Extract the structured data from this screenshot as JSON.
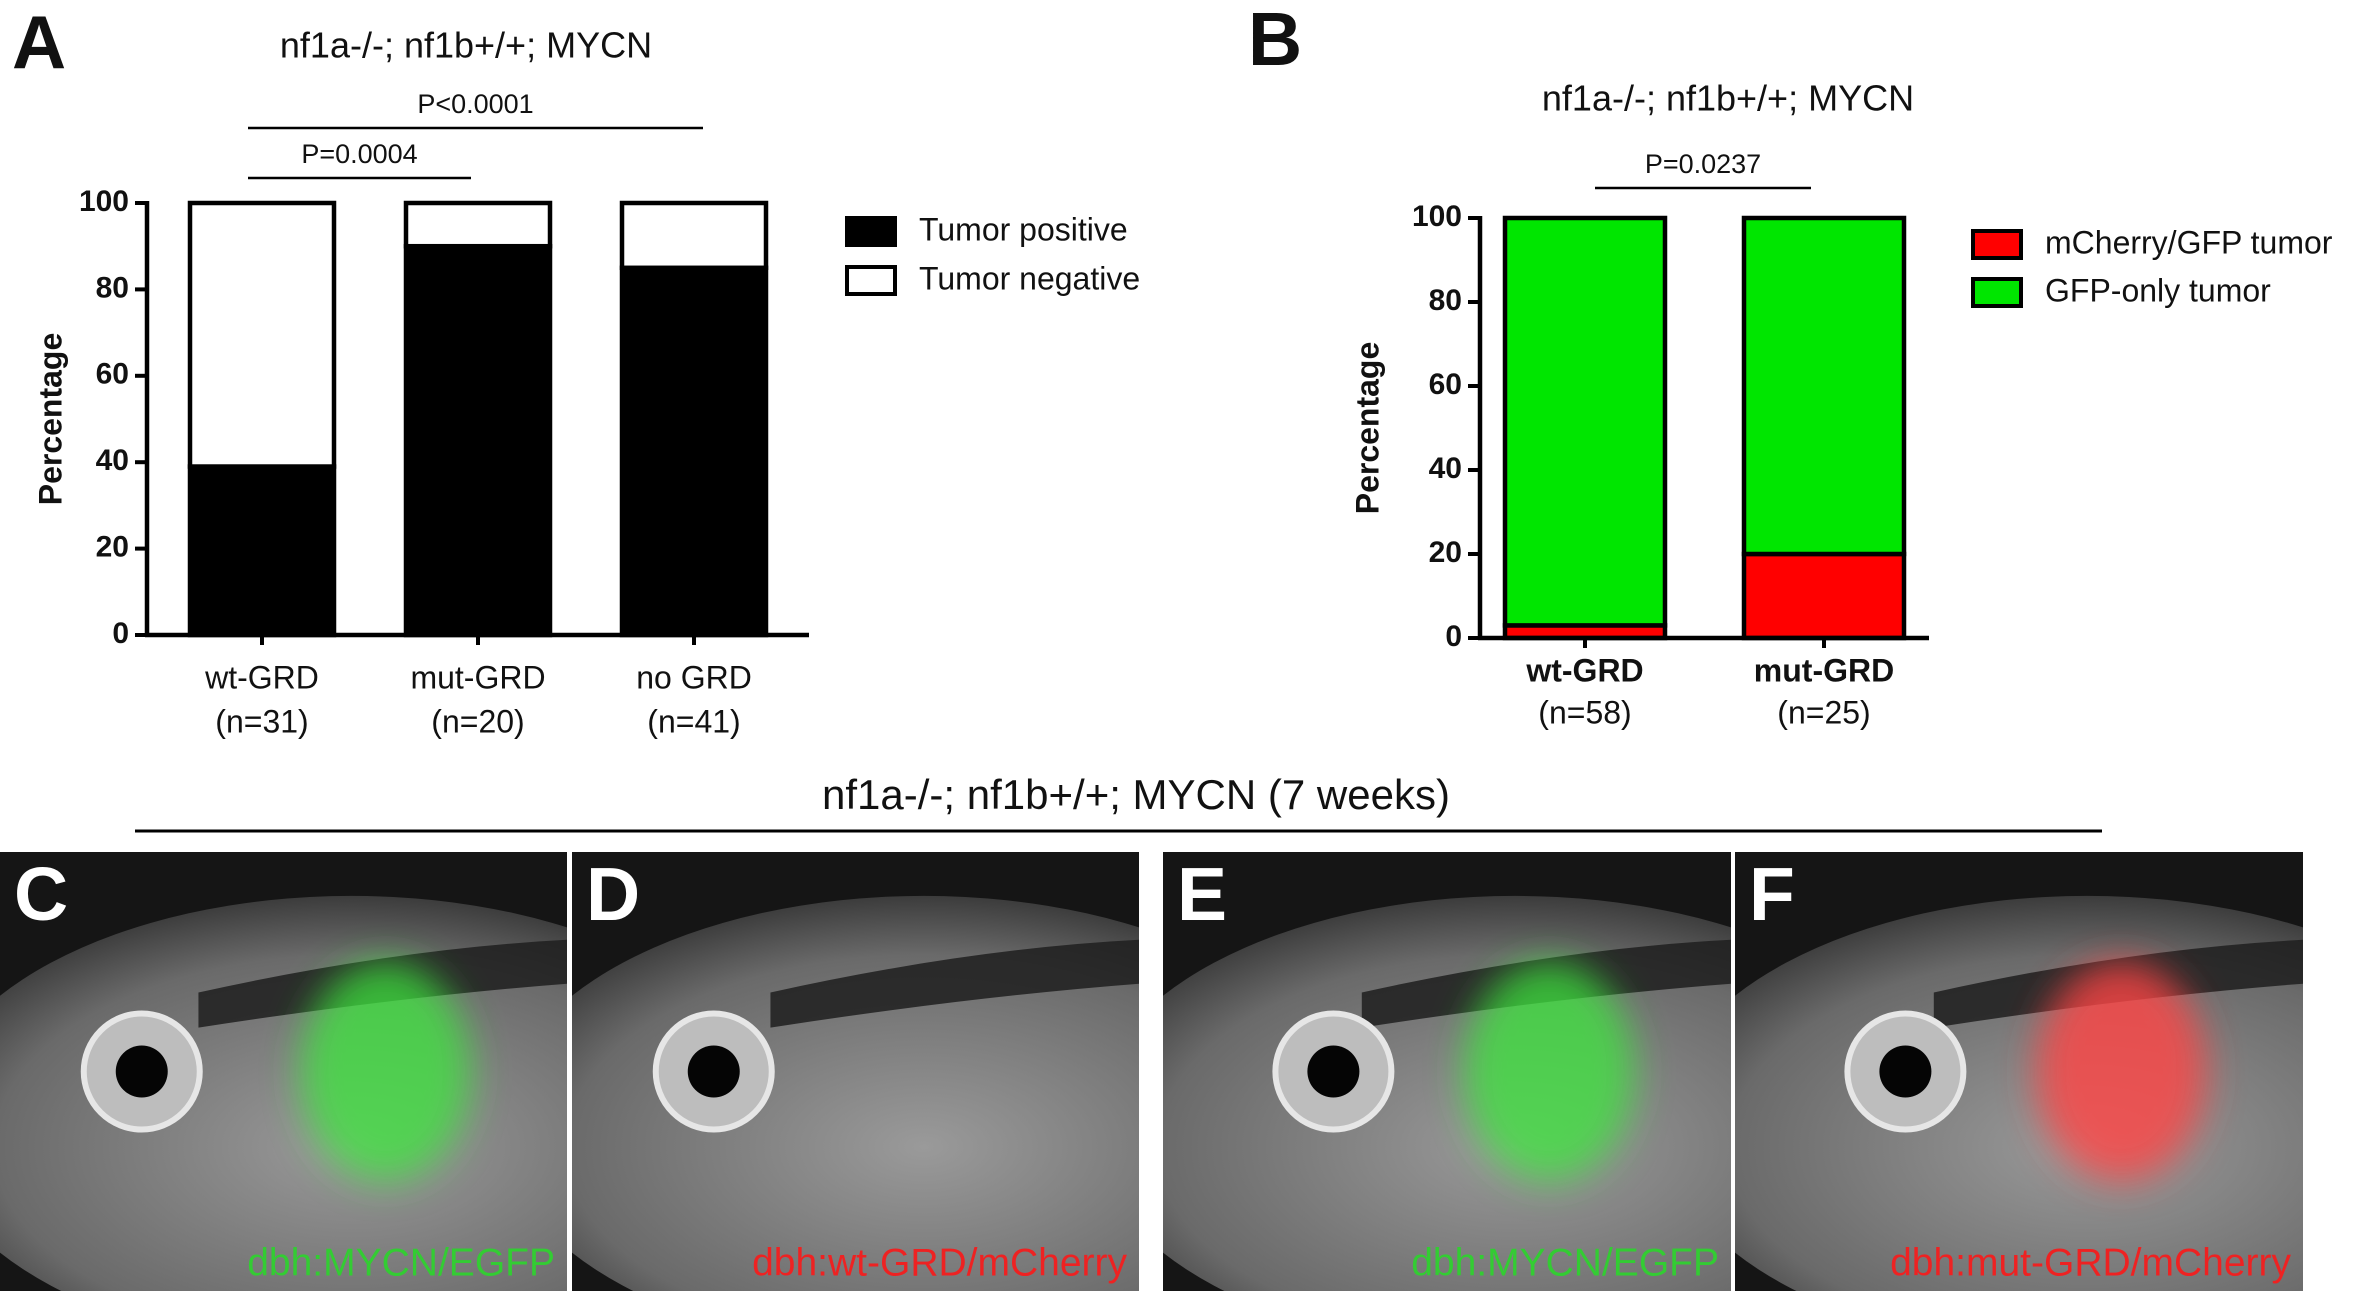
{
  "chart_data": [
    {
      "type": "bar",
      "stacked": true,
      "panel_label": "A",
      "title": "nf1a-/-; nf1b+/+; MYCN",
      "y_label": "Percentage",
      "categories": [
        "wt-GRD",
        "mut-GRD",
        "no GRD"
      ],
      "category_notes": [
        "(n=31)",
        "(n=20)",
        "(n=41)"
      ],
      "category_bold": false,
      "series": [
        {
          "name": "Tumor positive",
          "color": "#000000",
          "values": [
            39,
            90,
            85
          ]
        },
        {
          "name": "Tumor negative",
          "color": "#ffffff",
          "values": [
            61,
            10,
            15
          ]
        }
      ],
      "ylim": [
        0,
        100
      ],
      "yticks": [
        0,
        20,
        40,
        60,
        80,
        100
      ],
      "annotations": [
        "P=0.0004",
        "P<0.0001"
      ]
    },
    {
      "type": "bar",
      "stacked": true,
      "panel_label": "B",
      "title": "nf1a-/-; nf1b+/+; MYCN",
      "y_label": "Percentage",
      "categories": [
        "wt-GRD",
        "mut-GRD"
      ],
      "category_notes": [
        "(n=58)",
        "(n=25)"
      ],
      "category_bold": true,
      "series": [
        {
          "name": "mCherry/GFP tumor",
          "color": "#ff0000",
          "values": [
            3,
            20
          ]
        },
        {
          "name": "GFP-only tumor",
          "color": "#00e600",
          "values": [
            97,
            80
          ]
        }
      ],
      "ylim": [
        0,
        100
      ],
      "yticks": [
        0,
        20,
        40,
        60,
        80,
        100
      ],
      "annotations": [
        "P=0.0237"
      ]
    }
  ],
  "figure": {
    "subtitle": "nf1a-/-; nf1b+/+; MYCN (7 weeks)",
    "panels": [
      {
        "label": "C",
        "caption": "dbh:MYCN/EGFP",
        "color": "#33cc33"
      },
      {
        "label": "D",
        "caption": "dbh:wt-GRD/mCherry",
        "color": "#ee2222"
      },
      {
        "label": "E",
        "caption": "dbh:MYCN/EGFP",
        "color": "#33cc33"
      },
      {
        "label": "F",
        "caption": "dbh:mut-GRD/mCherry",
        "color": "#ee2222"
      }
    ]
  }
}
